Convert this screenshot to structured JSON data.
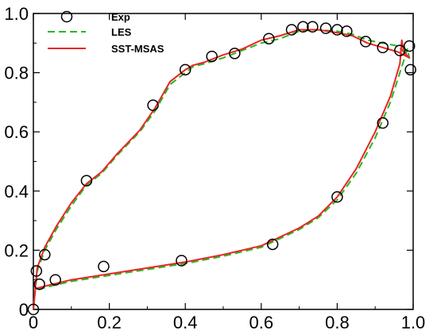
{
  "chart_data": {
    "type": "line",
    "title": "",
    "xlabel": "",
    "ylabel": "",
    "xlim": [
      0,
      1.0
    ],
    "ylim": [
      0,
      1.0
    ],
    "xticks": [
      "0",
      "0.2",
      "0.4",
      "0.6",
      "0.8",
      "1.0"
    ],
    "yticks": [
      "0",
      "0.2",
      "0.4",
      "0.6",
      "0.8",
      "1.0"
    ],
    "grid": false,
    "legend_position": "top-left",
    "series": [
      {
        "name": "Exp",
        "kind": "markers",
        "marker": "open-circle",
        "color": "#000000",
        "points": [
          [
            0.0,
            0.0
          ],
          [
            0.008,
            0.13
          ],
          [
            0.016,
            0.085
          ],
          [
            0.03,
            0.185
          ],
          [
            0.058,
            0.1
          ],
          [
            0.14,
            0.435
          ],
          [
            0.185,
            0.145
          ],
          [
            0.315,
            0.69
          ],
          [
            0.39,
            0.165
          ],
          [
            0.4,
            0.81
          ],
          [
            0.47,
            0.855
          ],
          [
            0.53,
            0.865
          ],
          [
            0.62,
            0.915
          ],
          [
            0.63,
            0.22
          ],
          [
            0.68,
            0.945
          ],
          [
            0.71,
            0.955
          ],
          [
            0.735,
            0.955
          ],
          [
            0.77,
            0.95
          ],
          [
            0.8,
            0.945
          ],
          [
            0.8,
            0.38
          ],
          [
            0.825,
            0.94
          ],
          [
            0.875,
            0.905
          ],
          [
            0.92,
            0.885
          ],
          [
            0.92,
            0.63
          ],
          [
            0.965,
            0.875
          ],
          [
            0.99,
            0.89
          ],
          [
            0.993,
            0.81
          ]
        ]
      },
      {
        "name": "LES",
        "kind": "line",
        "dash": "dashed",
        "color": "#22bb22",
        "points": [
          [
            0.0,
            0.0
          ],
          [
            0.005,
            0.065
          ],
          [
            0.05,
            0.08
          ],
          [
            0.1,
            0.095
          ],
          [
            0.2,
            0.115
          ],
          [
            0.3,
            0.135
          ],
          [
            0.4,
            0.155
          ],
          [
            0.5,
            0.18
          ],
          [
            0.6,
            0.21
          ],
          [
            0.65,
            0.24
          ],
          [
            0.7,
            0.27
          ],
          [
            0.75,
            0.31
          ],
          [
            0.8,
            0.37
          ],
          [
            0.85,
            0.46
          ],
          [
            0.9,
            0.58
          ],
          [
            0.94,
            0.7
          ],
          [
            0.97,
            0.82
          ],
          [
            0.985,
            0.88
          ],
          [
            0.99,
            0.85
          ],
          [
            0.96,
            0.89
          ],
          [
            0.92,
            0.9
          ],
          [
            0.88,
            0.91
          ],
          [
            0.84,
            0.93
          ],
          [
            0.8,
            0.94
          ],
          [
            0.75,
            0.945
          ],
          [
            0.7,
            0.94
          ],
          [
            0.65,
            0.915
          ],
          [
            0.6,
            0.9
          ],
          [
            0.55,
            0.875
          ],
          [
            0.5,
            0.85
          ],
          [
            0.45,
            0.83
          ],
          [
            0.42,
            0.82
          ],
          [
            0.4,
            0.8
          ],
          [
            0.36,
            0.76
          ],
          [
            0.32,
            0.67
          ],
          [
            0.28,
            0.6
          ],
          [
            0.22,
            0.52
          ],
          [
            0.18,
            0.46
          ],
          [
            0.14,
            0.42
          ],
          [
            0.1,
            0.35
          ],
          [
            0.06,
            0.27
          ],
          [
            0.03,
            0.2
          ],
          [
            0.01,
            0.13
          ],
          [
            0.0,
            0.0
          ]
        ]
      },
      {
        "name": "SST-MSAS",
        "kind": "line",
        "dash": "solid",
        "color": "#ee2222",
        "points": [
          [
            0.0,
            0.0
          ],
          [
            0.005,
            0.07
          ],
          [
            0.05,
            0.085
          ],
          [
            0.1,
            0.1
          ],
          [
            0.2,
            0.12
          ],
          [
            0.3,
            0.14
          ],
          [
            0.4,
            0.16
          ],
          [
            0.5,
            0.185
          ],
          [
            0.6,
            0.215
          ],
          [
            0.65,
            0.245
          ],
          [
            0.7,
            0.275
          ],
          [
            0.75,
            0.315
          ],
          [
            0.8,
            0.38
          ],
          [
            0.85,
            0.475
          ],
          [
            0.9,
            0.6
          ],
          [
            0.94,
            0.72
          ],
          [
            0.965,
            0.83
          ],
          [
            0.97,
            0.91
          ],
          [
            0.975,
            0.87
          ],
          [
            0.99,
            0.85
          ],
          [
            0.96,
            0.87
          ],
          [
            0.92,
            0.885
          ],
          [
            0.88,
            0.9
          ],
          [
            0.84,
            0.925
          ],
          [
            0.8,
            0.935
          ],
          [
            0.75,
            0.945
          ],
          [
            0.7,
            0.945
          ],
          [
            0.65,
            0.925
          ],
          [
            0.6,
            0.91
          ],
          [
            0.55,
            0.88
          ],
          [
            0.5,
            0.86
          ],
          [
            0.45,
            0.835
          ],
          [
            0.42,
            0.825
          ],
          [
            0.4,
            0.81
          ],
          [
            0.36,
            0.77
          ],
          [
            0.32,
            0.68
          ],
          [
            0.28,
            0.605
          ],
          [
            0.22,
            0.525
          ],
          [
            0.18,
            0.465
          ],
          [
            0.14,
            0.425
          ],
          [
            0.1,
            0.36
          ],
          [
            0.06,
            0.28
          ],
          [
            0.03,
            0.21
          ],
          [
            0.01,
            0.14
          ],
          [
            0.0,
            0.0
          ]
        ]
      }
    ]
  }
}
